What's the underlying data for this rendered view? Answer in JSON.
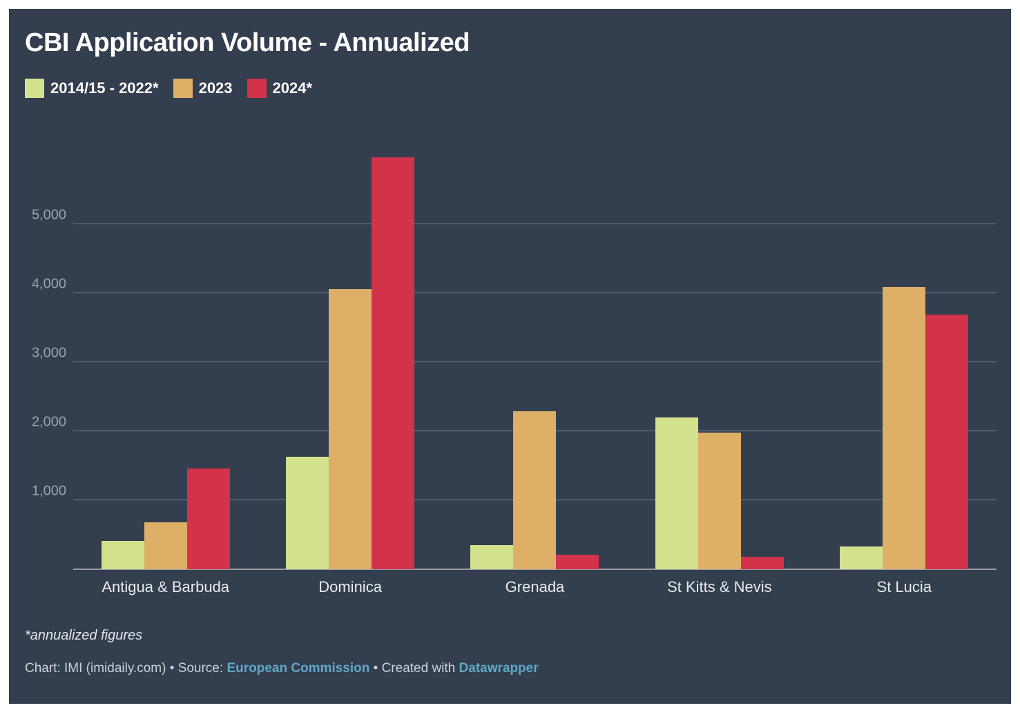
{
  "title": "CBI Application Volume - Annualized",
  "legend": [
    {
      "label": "2014/15 - 2022*",
      "color": "#d4e18c"
    },
    {
      "label": "2023",
      "color": "#deaf67"
    },
    {
      "label": "2024*",
      "color": "#d2334a"
    }
  ],
  "chart_data": {
    "type": "bar",
    "title": "CBI Application Volume - Annualized",
    "categories": [
      "Antigua & Barbuda",
      "Dominica",
      "Grenada",
      "St Kitts & Nevis",
      "St Lucia"
    ],
    "series": [
      {
        "name": "2014/15 - 2022*",
        "color": "#d4e18c",
        "values": [
          410,
          1630,
          350,
          2200,
          330
        ]
      },
      {
        "name": "2023",
        "color": "#deaf67",
        "values": [
          680,
          4060,
          2290,
          1980,
          4090
        ]
      },
      {
        "name": "2024*",
        "color": "#d2334a",
        "values": [
          1460,
          5970,
          210,
          180,
          3690
        ]
      }
    ],
    "xlabel": "",
    "ylabel": "",
    "y_ticks": [
      {
        "value": 1000,
        "label": "1,000"
      },
      {
        "value": 2000,
        "label": "2,000"
      },
      {
        "value": 3000,
        "label": "3,000"
      },
      {
        "value": 4000,
        "label": "4,000"
      },
      {
        "value": 5000,
        "label": "5,000"
      }
    ],
    "ylim": [
      0,
      6450
    ],
    "grid": true,
    "legend_position": "top-left"
  },
  "footnote": "*annualized figures",
  "footer": {
    "chart_label": "Chart: IMI (imidaily.com)",
    "sep1": "•",
    "source_label": "Source:",
    "source_link": "European Commission",
    "sep2": "•",
    "created_label": "Created with",
    "created_link": "Datawrapper"
  },
  "colors": {
    "page_bg": "#ffffff",
    "panel_bg": "#333e4f",
    "gridline": "#7c8594",
    "baseline": "#999fa9",
    "tick_text": "#9aa3ae",
    "category_text": "#e9eced",
    "title_text": "#ffffff",
    "footer_text": "#ccd2d8",
    "link": "#60a8c8"
  }
}
